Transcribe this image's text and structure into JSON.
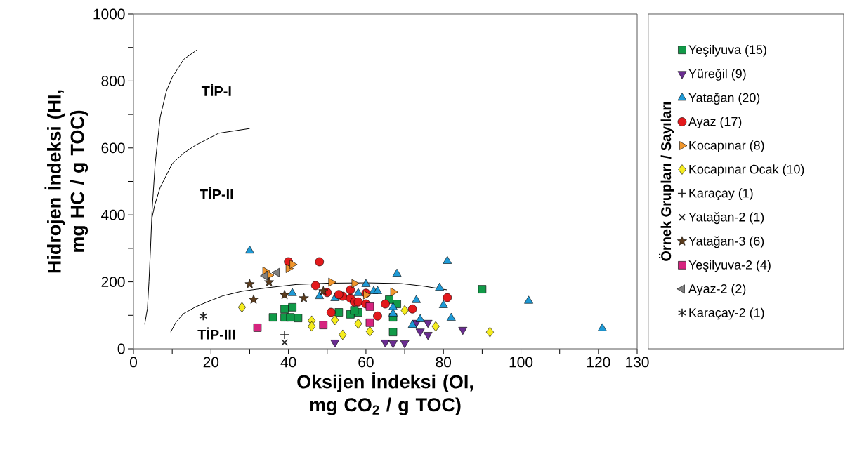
{
  "chart_data": {
    "type": "scatter",
    "xlabel": "Oksijen İndeksi (OI, mg CO$_{2}$ / g TOC)",
    "ylabel": "Hidrojen İndeksi (HI, mg HC / g TOC)",
    "legend_title": "Örnek Grupları / Sayıları",
    "legend": "right",
    "xlim": [
      0,
      130
    ],
    "ylim": [
      0,
      1000
    ],
    "xticks": [
      0,
      {
        "value": 10,
        "label": null
      },
      20,
      {
        "value": 30,
        "label": null
      },
      40,
      {
        "value": 50,
        "label": null
      },
      60,
      {
        "value": 70,
        "label": null
      },
      80,
      {
        "value": 90,
        "label": null
      },
      100,
      {
        "value": 110,
        "label": null
      },
      120,
      130
    ],
    "yticks": [
      0,
      {
        "value": 100,
        "label": null
      },
      200,
      {
        "value": 300,
        "label": null
      },
      400,
      {
        "value": 500,
        "label": null
      },
      600,
      {
        "value": 700,
        "label": null
      },
      800,
      {
        "value": 900,
        "label": null
      },
      1000
    ],
    "annotations": [
      "TİP-I",
      "TİP-II",
      "TİP-III"
    ],
    "series": [
      {
        "type": "line",
        "color": "#000000",
        "x": [
          2.9,
          3.6,
          4.0,
          4.4,
          4.8,
          5.6,
          6.9,
          8.5,
          10,
          13,
          16.4
        ],
        "values": [
          73,
          120,
          200,
          300,
          413,
          553,
          692,
          770,
          811,
          865,
          893
        ]
      },
      {
        "type": "line",
        "color": "#000000",
        "x": [
          4.8,
          5.5,
          6.9,
          10,
          13,
          16,
          22,
          30
        ],
        "values": [
          392,
          430,
          482,
          553,
          585,
          608,
          644,
          658
        ]
      },
      {
        "type": "line",
        "color": "#000000",
        "x": [
          9.6,
          11,
          12.9,
          16,
          19,
          23,
          28,
          35,
          42,
          50,
          60,
          69,
          75,
          81
        ],
        "values": [
          50,
          80,
          105,
          125,
          140,
          158,
          172,
          183,
          192,
          196,
          197,
          195,
          187,
          176
        ]
      },
      {
        "name": "Yeşilyuva (15)",
        "color": "#119a48",
        "marker": "square",
        "x": [
          36,
          39,
          41,
          39,
          40.5,
          42.5,
          53,
          56,
          58,
          57,
          66,
          68,
          67,
          67,
          90
        ],
        "values": [
          94,
          119,
          124,
          94,
          94,
          92,
          109,
          103,
          109,
          115,
          147,
          134,
          94,
          50,
          178
        ]
      },
      {
        "name": "Yüreğil (9)",
        "color": "#6a2c91",
        "marker": "triangle_down",
        "x": [
          52,
          65,
          67,
          70,
          73,
          74,
          76,
          76,
          85
        ],
        "values": [
          19,
          19,
          17,
          17,
          78,
          52,
          78,
          42,
          57
        ]
      },
      {
        "name": "Yatağan (20)",
        "color": "#1e9ad6",
        "marker": "triangle",
        "x": [
          30,
          41,
          48,
          52,
          58,
          60,
          62,
          63,
          68,
          67,
          67,
          73,
          74,
          72,
          79,
          80,
          81,
          82,
          102,
          121
        ],
        "values": [
          293,
          166,
          157,
          151,
          166,
          193,
          172,
          172,
          224,
          124,
          105,
          145,
          88,
          71,
          182,
          130,
          262,
          92,
          143,
          61
        ]
      },
      {
        "name": "Ayaz (17)",
        "color": "#e3191c",
        "marker": "circle",
        "x": [
          40,
          48,
          47,
          50,
          54,
          56,
          57,
          58,
          51,
          63,
          65,
          72,
          81,
          56,
          60,
          60,
          53
        ],
        "values": [
          260,
          260,
          189,
          168,
          157,
          151,
          140,
          140,
          109,
          98,
          134,
          119,
          153,
          176,
          166,
          134,
          162
        ]
      },
      {
        "name": "Kocapınar (8)",
        "color": "#f0962d",
        "marker": "triangle_right",
        "x": [
          34,
          35,
          40,
          41,
          51,
          57,
          60,
          67
        ],
        "values": [
          232,
          220,
          240,
          252,
          199,
          195,
          161,
          170
        ]
      },
      {
        "name": "Kocapınar Ocak (10)",
        "color": "#f5ec1d",
        "marker": "diamond",
        "x": [
          28,
          46,
          46,
          52,
          54,
          61,
          70,
          78,
          92,
          58
        ],
        "values": [
          124,
          84,
          67,
          86,
          42,
          52,
          115,
          67,
          50,
          75
        ]
      },
      {
        "name": "Karaçay (1)",
        "color": "#222222",
        "marker": "plus",
        "x": [
          39
        ],
        "values": [
          42
        ]
      },
      {
        "name": "Yatağan-2 (1)",
        "color": "#222222",
        "marker": "cross",
        "x": [
          39
        ],
        "values": [
          19
        ]
      },
      {
        "name": "Yatağan-3 (6)",
        "color": "#5c3d1e",
        "marker": "star",
        "x": [
          30,
          31,
          35,
          39,
          44,
          49
        ],
        "values": [
          193,
          147,
          199,
          161,
          151,
          172
        ]
      },
      {
        "name": "Yeşilyuva-2 (4)",
        "color": "#d6247f",
        "marker": "square",
        "x": [
          32,
          49,
          61,
          61
        ],
        "values": [
          63,
          71,
          126,
          78
        ]
      },
      {
        "name": "Ayaz-2 (2)",
        "color": "#808080",
        "marker": "triangle_left",
        "x": [
          34,
          37
        ],
        "values": [
          218,
          228
        ]
      },
      {
        "name": "Karaçay-2 (1)",
        "color": "#222222",
        "x": [
          18
        ],
        "values": [
          98
        ]
      }
    ]
  }
}
